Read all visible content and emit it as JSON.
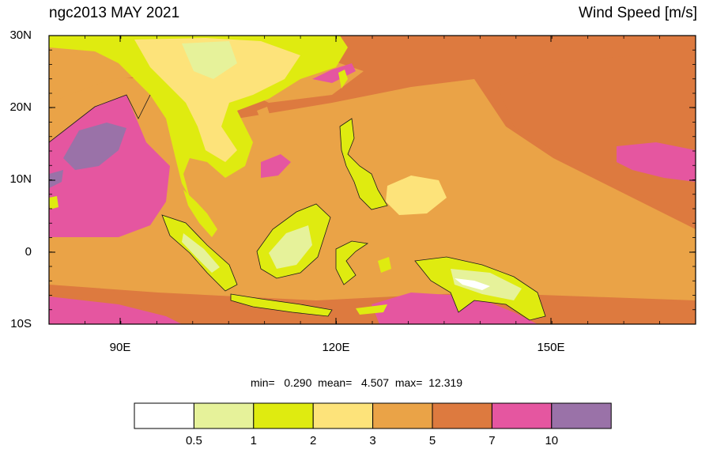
{
  "header": {
    "left_title": "ngc2013 MAY 2021",
    "right_title": "Wind Speed [m/s]"
  },
  "axes": {
    "lat_labels": [
      "30N",
      "20N",
      "10N",
      "0",
      "10S"
    ],
    "lon_labels": [
      "90E",
      "120E",
      "150E"
    ]
  },
  "stats": {
    "text": "min=   0.290  mean=   4.507  max=  12.319"
  },
  "colorbar": {
    "levels": [
      "0.5",
      "1",
      "2",
      "3",
      "5",
      "7",
      "10"
    ],
    "colors": [
      "#ffffff",
      "#e6f29a",
      "#dfeb10",
      "#fde37a",
      "#eaa347",
      "#dd7a3f",
      "#e556a0",
      "#9a72a8"
    ]
  },
  "colors": {
    "ocean_base": "#dd7a3f",
    "ocean_mid": "#eaa347",
    "land_low": "#e6f29a",
    "land_mid": "#dfeb10",
    "land_high": "#fde37a",
    "strong": "#e556a0",
    "strongest": "#9a72a8"
  }
}
